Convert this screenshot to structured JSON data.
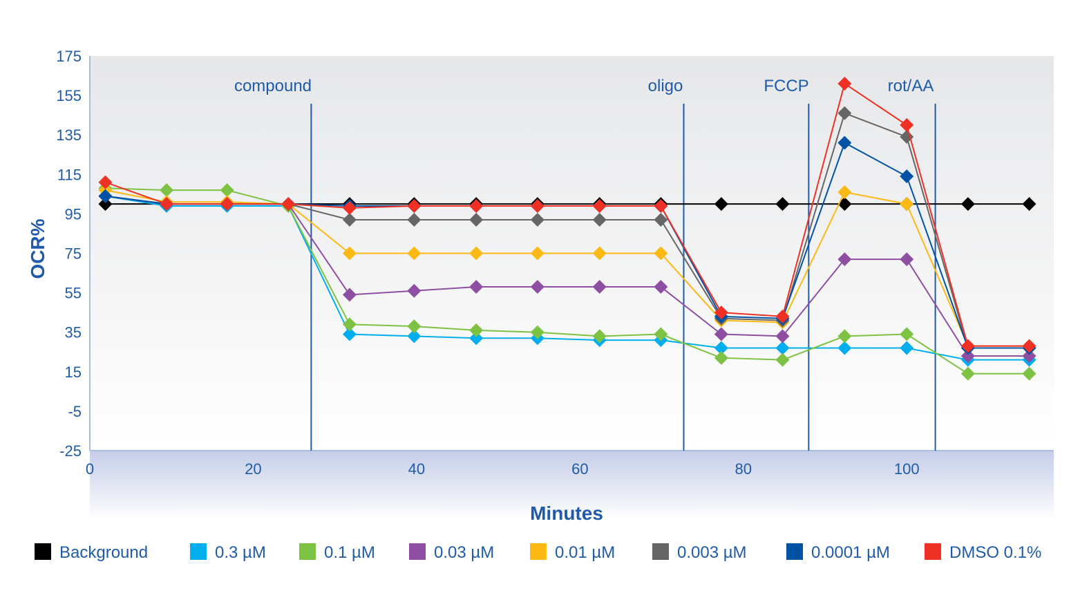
{
  "chart_data": {
    "type": "line",
    "title": "",
    "xlabel": "Minutes",
    "ylabel": "OCR%",
    "xlim": [
      0,
      118
    ],
    "ylim": [
      -25,
      175
    ],
    "x_ticks": [
      "0",
      "20",
      "40",
      "60",
      "80",
      "100"
    ],
    "x_tick_values": [
      0,
      20,
      40,
      60,
      80,
      100
    ],
    "y_ticks": [
      "-25",
      "-5",
      "15",
      "35",
      "55",
      "75",
      "95",
      "115",
      "135",
      "155",
      "175"
    ],
    "y_tick_values": [
      -25,
      -5,
      15,
      35,
      55,
      75,
      95,
      115,
      135,
      155,
      175
    ],
    "grid": false,
    "legend_position": "bottom",
    "annotations": [
      {
        "label": "compound",
        "x": 27.1
      },
      {
        "label": "oligo",
        "x": 72.7
      },
      {
        "label": "FCCP",
        "x": 88.0
      },
      {
        "label": "rot/AA",
        "x": 103.5
      }
    ],
    "x": [
      1.9,
      9.4,
      16.8,
      24.3,
      31.8,
      39.7,
      47.3,
      54.8,
      62.4,
      69.9,
      77.3,
      84.8,
      92.4,
      100.0,
      107.5,
      115.0
    ],
    "series": [
      {
        "name": "Background",
        "color": "#000000",
        "values": [
          100,
          100,
          100,
          100,
          100,
          100,
          100,
          100,
          100,
          100,
          100,
          100,
          100,
          100,
          100,
          100
        ]
      },
      {
        "name": "0.3 µM",
        "color": "#00aeef",
        "values": [
          104,
          99,
          99,
          99,
          34,
          33,
          32,
          32,
          31,
          31,
          27,
          27,
          27,
          27,
          21,
          21
        ]
      },
      {
        "name": "0.1 µM",
        "color": "#7dc242",
        "values": [
          108,
          107,
          107,
          99,
          39,
          38,
          36,
          35,
          33,
          34,
          22,
          21,
          33,
          34,
          14,
          14
        ]
      },
      {
        "name": "0.03 µM",
        "color": "#8e4fa2",
        "values": [
          104,
          100,
          100,
          100,
          54,
          56,
          58,
          58,
          58,
          58,
          34,
          33,
          72,
          72,
          23,
          23
        ]
      },
      {
        "name": "0.01 µM",
        "color": "#fdb913",
        "values": [
          107,
          101,
          101,
          100,
          75,
          75,
          75,
          75,
          75,
          75,
          41,
          40,
          106,
          100,
          28,
          28
        ]
      },
      {
        "name": "0.003 µM",
        "color": "#666666",
        "values": [
          104,
          100,
          100,
          100,
          92,
          92,
          92,
          92,
          92,
          92,
          42,
          41,
          146,
          134,
          27,
          27
        ]
      },
      {
        "name": "0.0001 µM",
        "color": "#0052a5",
        "values": [
          104,
          100,
          100,
          100,
          99,
          99,
          99,
          99,
          99,
          99,
          43,
          42,
          131,
          114,
          27,
          27
        ]
      },
      {
        "name": "DMSO 0.1%",
        "color": "#ee3124",
        "values": [
          111,
          100,
          100,
          100,
          98,
          99,
          99,
          99,
          99,
          99,
          45,
          43,
          161,
          140,
          28,
          28
        ]
      }
    ]
  }
}
